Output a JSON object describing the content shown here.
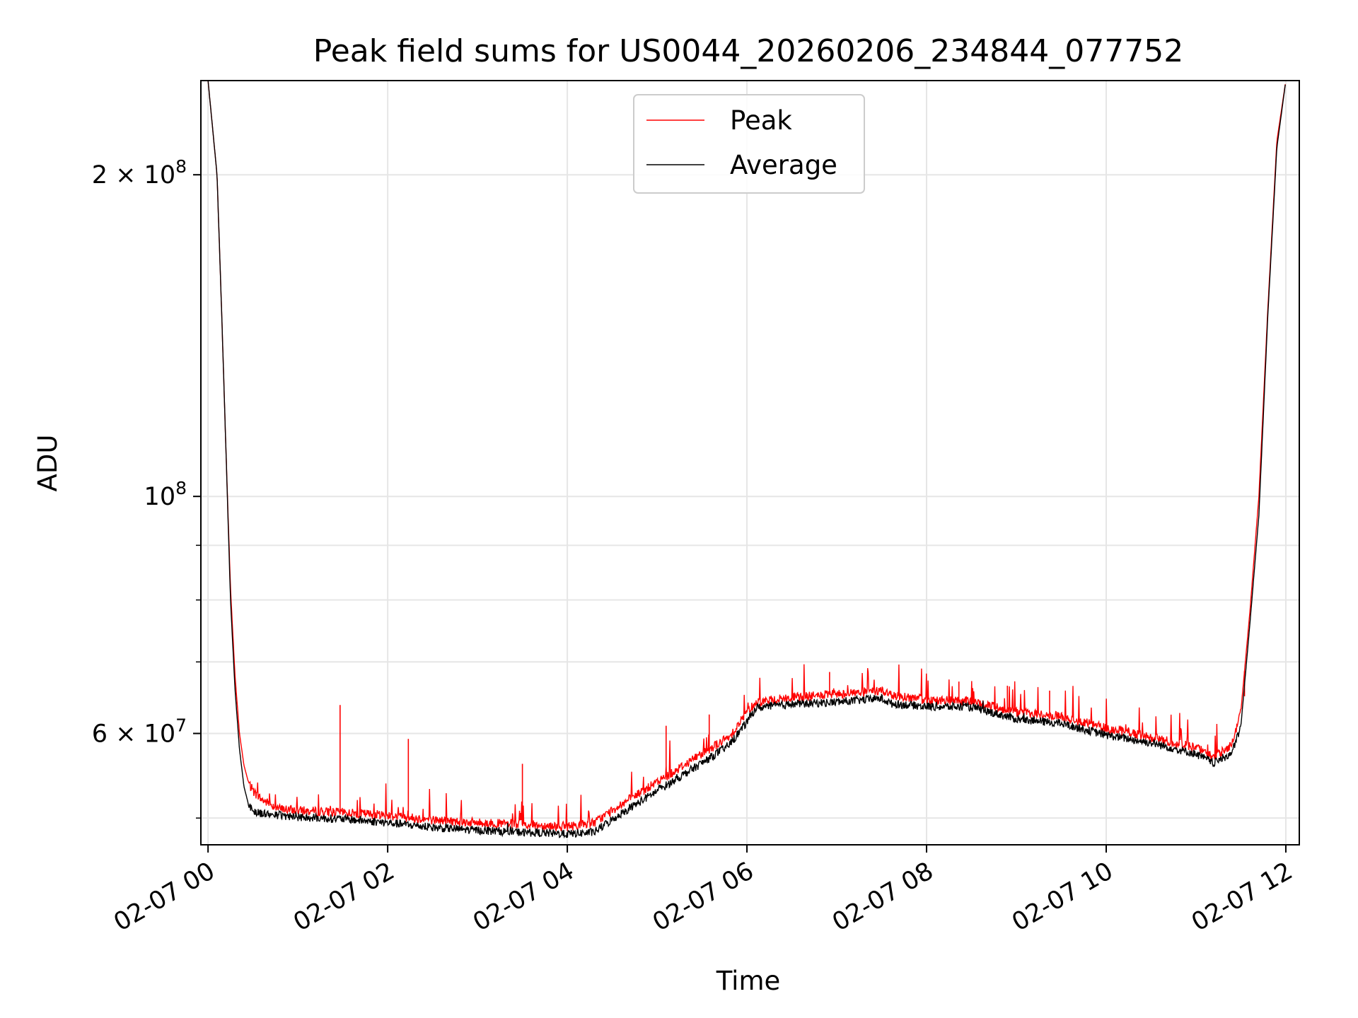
{
  "chart_data": {
    "type": "line",
    "title": "Peak field sums for US0044_20260206_234844_077752",
    "xlabel": "Time",
    "ylabel": "ADU",
    "x_unit": "hours after 2026-02-07 00:00",
    "x_range": [
      -0.08,
      12.15
    ],
    "y_scale": "log",
    "y_range": [
      47200000,
      245000000
    ],
    "grid": true,
    "legend_position": "upper center",
    "x_ticks": [
      {
        "value": 0,
        "label": "02-07 00"
      },
      {
        "value": 2,
        "label": "02-07 02"
      },
      {
        "value": 4,
        "label": "02-07 04"
      },
      {
        "value": 6,
        "label": "02-07 06"
      },
      {
        "value": 8,
        "label": "02-07 08"
      },
      {
        "value": 10,
        "label": "02-07 10"
      },
      {
        "value": 12,
        "label": "02-07 12"
      }
    ],
    "y_ticks": [
      {
        "value": 60000000,
        "label_base": "6 × 10",
        "label_exp": "7"
      },
      {
        "value": 100000000,
        "label_base": "10",
        "label_exp": "8"
      },
      {
        "value": 200000000,
        "label_base": "2 × 10",
        "label_exp": "8"
      }
    ],
    "y_minor_ticks": [
      50000000,
      70000000,
      80000000,
      90000000
    ],
    "series": [
      {
        "name": "Peak",
        "color": "#ff0000",
        "x": [
          0.0,
          0.1,
          0.15,
          0.2,
          0.25,
          0.3,
          0.35,
          0.4,
          0.45,
          0.5,
          0.6,
          0.8,
          1.0,
          1.5,
          2.0,
          2.5,
          3.0,
          3.5,
          4.0,
          4.3,
          4.6,
          5.0,
          5.5,
          5.8,
          6.0,
          6.1,
          6.5,
          7.0,
          7.5,
          7.6,
          8.0,
          8.5,
          9.0,
          9.5,
          10.0,
          10.5,
          11.0,
          11.2,
          11.4,
          11.5,
          11.6,
          11.7,
          11.8,
          11.9,
          12.0
        ],
        "y": [
          245000000,
          200000000,
          150000000,
          110000000,
          82000000,
          68000000,
          60000000,
          56000000,
          54000000,
          53000000,
          52000000,
          51000000,
          50800000,
          50600000,
          50300000,
          49800000,
          49500000,
          49300000,
          49100000,
          49500000,
          51500000,
          54000000,
          57500000,
          59500000,
          62800000,
          64200000,
          64800000,
          65300000,
          65800000,
          65200000,
          64500000,
          64300000,
          62800000,
          62200000,
          60700000,
          59500000,
          58200000,
          57000000,
          58600000,
          63000000,
          78000000,
          100000000,
          150000000,
          215000000,
          245000000
        ],
        "spikes": [
          {
            "x": 1.47,
            "y": 63800000
          },
          {
            "x": 2.23,
            "y": 59300000
          },
          {
            "x": 3.5,
            "y": 56200000
          },
          {
            "x": 5.1,
            "y": 61000000
          },
          {
            "x": 5.58,
            "y": 62500000
          },
          {
            "x": 6.92,
            "y": 68500000
          },
          {
            "x": 8.36,
            "y": 67100000
          },
          {
            "x": 8.9,
            "y": 66500000
          },
          {
            "x": 9.37,
            "y": 65800000
          },
          {
            "x": 11.54,
            "y": 65000000
          }
        ]
      },
      {
        "name": "Average",
        "color": "#000000",
        "x": [
          0.0,
          0.1,
          0.15,
          0.2,
          0.25,
          0.3,
          0.35,
          0.4,
          0.45,
          0.5,
          0.6,
          0.8,
          1.0,
          1.5,
          2.0,
          2.5,
          3.0,
          3.5,
          4.0,
          4.3,
          4.6,
          5.0,
          5.5,
          5.8,
          6.0,
          6.1,
          6.5,
          7.0,
          7.5,
          7.6,
          8.0,
          8.5,
          9.0,
          9.5,
          10.0,
          10.5,
          11.0,
          11.2,
          11.4,
          11.5,
          11.6,
          11.7,
          11.8,
          11.9,
          12.0
        ],
        "y": [
          245000000,
          200000000,
          150000000,
          110000000,
          80000000,
          66000000,
          58000000,
          53500000,
          51500000,
          50800000,
          50500000,
          50300000,
          50100000,
          49900000,
          49500000,
          49000000,
          48700000,
          48500000,
          48300000,
          48500000,
          50500000,
          53000000,
          56300000,
          58500000,
          61500000,
          63400000,
          63900000,
          64200000,
          64700000,
          64000000,
          63600000,
          63500000,
          61900000,
          61300000,
          59800000,
          58800000,
          57400000,
          56300000,
          57500000,
          61000000,
          76000000,
          96000000,
          148000000,
          212000000,
          245000000
        ]
      }
    ]
  }
}
